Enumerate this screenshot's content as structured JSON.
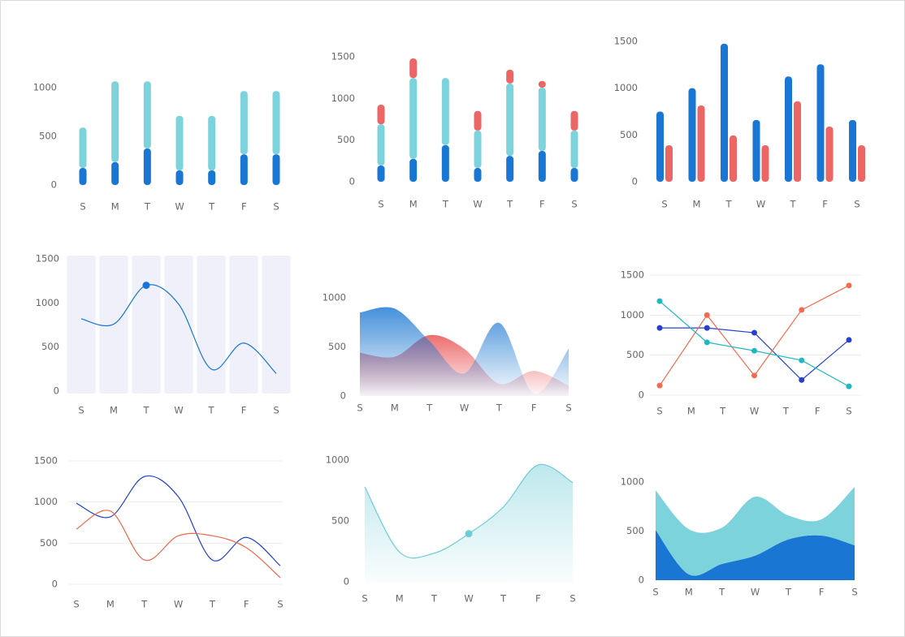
{
  "chart_data": [
    {
      "type": "bar",
      "stacked": true,
      "categories": [
        "S",
        "M",
        "T",
        "W",
        "T",
        "F",
        "S"
      ],
      "ylim": [
        0,
        1100
      ],
      "yticks": [
        0,
        500,
        1000
      ],
      "series": [
        {
          "color": "#1976d2",
          "values": [
            175,
            235,
            375,
            150,
            150,
            315,
            315
          ]
        },
        {
          "color": "#7dd3dc",
          "values": [
            415,
            830,
            690,
            560,
            560,
            650,
            650
          ]
        }
      ]
    },
    {
      "type": "bar",
      "stacked": true,
      "categories": [
        "S",
        "M",
        "T",
        "W",
        "T",
        "F",
        "S"
      ],
      "ylim": [
        0,
        1500
      ],
      "yticks": [
        0,
        500,
        1000,
        1500
      ],
      "series": [
        {
          "color": "#1976d2",
          "values": [
            195,
            275,
            440,
            165,
            310,
            370,
            165
          ]
        },
        {
          "color": "#7dd3dc",
          "values": [
            495,
            970,
            805,
            450,
            870,
            760,
            450
          ]
        },
        {
          "color": "#ec6666",
          "values": [
            235,
            235,
            0,
            235,
            165,
            80,
            235
          ]
        }
      ]
    },
    {
      "type": "bar",
      "stacked": false,
      "categories": [
        "S",
        "M",
        "T",
        "W",
        "T",
        "F",
        "S"
      ],
      "ylim": [
        0,
        1500
      ],
      "yticks": [
        0,
        500,
        1000,
        1500
      ],
      "series": [
        {
          "color": "#1976d2",
          "values": [
            750,
            1000,
            1475,
            660,
            1125,
            1255,
            660
          ]
        },
        {
          "color": "#ec6666",
          "values": [
            390,
            815,
            495,
            390,
            860,
            590,
            390
          ]
        }
      ]
    },
    {
      "type": "line",
      "smooth": true,
      "bands": true,
      "marker_index": 2,
      "categories": [
        "S",
        "M",
        "T",
        "W",
        "T",
        "F",
        "S"
      ],
      "ylim": [
        0,
        1500
      ],
      "yticks": [
        0,
        500,
        1000,
        1500
      ],
      "series": [
        {
          "color": "#1976d2",
          "values": [
            820,
            760,
            1200,
            985,
            250,
            545,
            200
          ]
        }
      ]
    },
    {
      "type": "area",
      "stacked": false,
      "categories": [
        "S",
        "M",
        "T",
        "W",
        "T",
        "F",
        "S"
      ],
      "ylim": [
        0,
        1000
      ],
      "yticks": [
        0,
        500,
        1000
      ],
      "series": [
        {
          "color": "#ec6666",
          "values": [
            440,
            400,
            620,
            480,
            125,
            255,
            105
          ]
        },
        {
          "color": "#1976d2",
          "values": [
            850,
            890,
            560,
            230,
            745,
            25,
            480
          ]
        }
      ]
    },
    {
      "type": "line",
      "smooth": false,
      "markers": true,
      "grid": true,
      "xlim": [
        0,
        6
      ],
      "xticks": [
        {
          "value": 0,
          "label": "S"
        },
        {
          "value": 1,
          "label": "M"
        },
        {
          "value": 2,
          "label": "T"
        },
        {
          "value": 3,
          "label": "W"
        },
        {
          "value": 4,
          "label": "T"
        },
        {
          "value": 5,
          "label": "F"
        },
        {
          "value": 6,
          "label": "S"
        }
      ],
      "x": [
        0,
        1.5,
        3,
        4.5,
        6
      ],
      "ylim": [
        0,
        1500
      ],
      "yticks": [
        0,
        500,
        1000,
        1500
      ],
      "series": [
        {
          "color": "#2540d0",
          "values": [
            840,
            840,
            780,
            190,
            690
          ]
        },
        {
          "color": "#f26b4f",
          "values": [
            120,
            1000,
            245,
            1065,
            1370
          ]
        },
        {
          "color": "#20b8c0",
          "values": [
            1175,
            660,
            555,
            435,
            110
          ]
        }
      ]
    },
    {
      "type": "line",
      "smooth": true,
      "grid": true,
      "categories": [
        "S",
        "M",
        "T",
        "W",
        "T",
        "F",
        "S"
      ],
      "ylim": [
        0,
        1500
      ],
      "yticks": [
        0,
        500,
        1000,
        1500
      ],
      "series": [
        {
          "color": "#2540c8",
          "values": [
            985,
            820,
            1310,
            1065,
            295,
            570,
            225
          ]
        },
        {
          "color": "#f0664a",
          "values": [
            670,
            890,
            295,
            590,
            590,
            445,
            80
          ]
        }
      ]
    },
    {
      "type": "area",
      "stacked": false,
      "marker_index": 3,
      "categories": [
        "S",
        "M",
        "T",
        "W",
        "T",
        "F",
        "S"
      ],
      "ylim": [
        0,
        1000
      ],
      "yticks": [
        0,
        500,
        1000
      ],
      "series": [
        {
          "color": "#6cccd6",
          "values": [
            780,
            245,
            235,
            395,
            615,
            960,
            815
          ]
        }
      ]
    },
    {
      "type": "area",
      "stacked": true,
      "categories": [
        "S",
        "M",
        "T",
        "W",
        "T",
        "F",
        "S"
      ],
      "ylim": [
        0,
        1000
      ],
      "yticks": [
        0,
        500,
        1000
      ],
      "series": [
        {
          "color": "#1976d2",
          "values": [
            510,
            60,
            165,
            250,
            415,
            455,
            355
          ]
        },
        {
          "color": "#7dd3dc",
          "values": [
            405,
            460,
            370,
            600,
            245,
            165,
            595
          ]
        }
      ]
    }
  ]
}
